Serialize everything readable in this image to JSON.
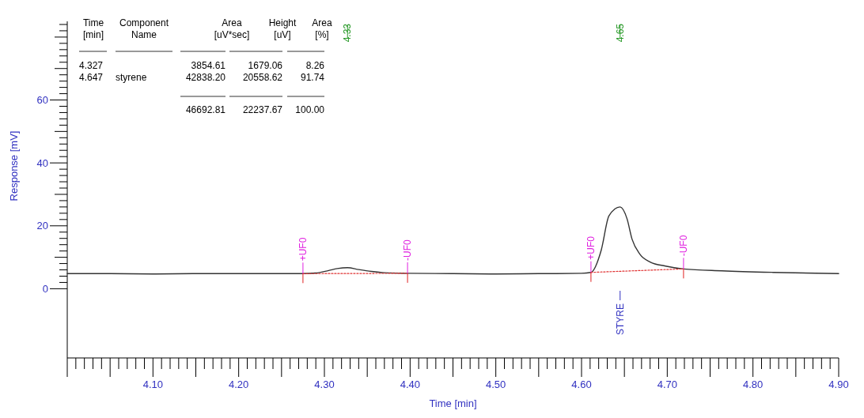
{
  "chart_data": {
    "type": "line",
    "xlabel": "Time [min]",
    "ylabel": "Response [mV]",
    "xlim": [
      4.0,
      4.9
    ],
    "ylim": [
      -22,
      85
    ],
    "xticks": [
      {
        "value": 4.0,
        "label": null
      },
      {
        "value": 4.01,
        "label": null
      },
      {
        "value": 4.02,
        "label": null
      },
      {
        "value": 4.03,
        "label": null
      },
      {
        "value": 4.04,
        "label": null
      },
      {
        "value": 4.05,
        "label": null
      },
      {
        "value": 4.06,
        "label": null
      },
      {
        "value": 4.07,
        "label": null
      },
      {
        "value": 4.08,
        "label": null
      },
      {
        "value": 4.09,
        "label": null
      },
      {
        "value": 4.1,
        "label": "4.10"
      },
      {
        "value": 4.11,
        "label": null
      },
      {
        "value": 4.12,
        "label": null
      },
      {
        "value": 4.13,
        "label": null
      },
      {
        "value": 4.14,
        "label": null
      },
      {
        "value": 4.15,
        "label": null
      },
      {
        "value": 4.16,
        "label": null
      },
      {
        "value": 4.17,
        "label": null
      },
      {
        "value": 4.18,
        "label": null
      },
      {
        "value": 4.19,
        "label": null
      },
      {
        "value": 4.2,
        "label": "4.20"
      },
      {
        "value": 4.21,
        "label": null
      },
      {
        "value": 4.22,
        "label": null
      },
      {
        "value": 4.23,
        "label": null
      },
      {
        "value": 4.24,
        "label": null
      },
      {
        "value": 4.25,
        "label": null
      },
      {
        "value": 4.26,
        "label": null
      },
      {
        "value": 4.27,
        "label": null
      },
      {
        "value": 4.28,
        "label": null
      },
      {
        "value": 4.29,
        "label": null
      },
      {
        "value": 4.3,
        "label": "4.30"
      },
      {
        "value": 4.31,
        "label": null
      },
      {
        "value": 4.32,
        "label": null
      },
      {
        "value": 4.33,
        "label": null
      },
      {
        "value": 4.34,
        "label": null
      },
      {
        "value": 4.35,
        "label": null
      },
      {
        "value": 4.36,
        "label": null
      },
      {
        "value": 4.37,
        "label": null
      },
      {
        "value": 4.38,
        "label": null
      },
      {
        "value": 4.39,
        "label": null
      },
      {
        "value": 4.4,
        "label": "4.40"
      },
      {
        "value": 4.41,
        "label": null
      },
      {
        "value": 4.42,
        "label": null
      },
      {
        "value": 4.43,
        "label": null
      },
      {
        "value": 4.44,
        "label": null
      },
      {
        "value": 4.45,
        "label": null
      },
      {
        "value": 4.46,
        "label": null
      },
      {
        "value": 4.47,
        "label": null
      },
      {
        "value": 4.48,
        "label": null
      },
      {
        "value": 4.49,
        "label": null
      },
      {
        "value": 4.5,
        "label": "4.50"
      },
      {
        "value": 4.51,
        "label": null
      },
      {
        "value": 4.52,
        "label": null
      },
      {
        "value": 4.53,
        "label": null
      },
      {
        "value": 4.54,
        "label": null
      },
      {
        "value": 4.55,
        "label": null
      },
      {
        "value": 4.56,
        "label": null
      },
      {
        "value": 4.57,
        "label": null
      },
      {
        "value": 4.58,
        "label": null
      },
      {
        "value": 4.59,
        "label": null
      },
      {
        "value": 4.6,
        "label": "4.60"
      },
      {
        "value": 4.61,
        "label": null
      },
      {
        "value": 4.62,
        "label": null
      },
      {
        "value": 4.63,
        "label": null
      },
      {
        "value": 4.64,
        "label": null
      },
      {
        "value": 4.65,
        "label": null
      },
      {
        "value": 4.66,
        "label": null
      },
      {
        "value": 4.67,
        "label": null
      },
      {
        "value": 4.68,
        "label": null
      },
      {
        "value": 4.69,
        "label": null
      },
      {
        "value": 4.7,
        "label": "4.70"
      },
      {
        "value": 4.71,
        "label": null
      },
      {
        "value": 4.72,
        "label": null
      },
      {
        "value": 4.73,
        "label": null
      },
      {
        "value": 4.74,
        "label": null
      },
      {
        "value": 4.75,
        "label": null
      },
      {
        "value": 4.76,
        "label": null
      },
      {
        "value": 4.77,
        "label": null
      },
      {
        "value": 4.78,
        "label": null
      },
      {
        "value": 4.79,
        "label": null
      },
      {
        "value": 4.8,
        "label": "4.80"
      },
      {
        "value": 4.81,
        "label": null
      },
      {
        "value": 4.82,
        "label": null
      },
      {
        "value": 4.83,
        "label": null
      },
      {
        "value": 4.84,
        "label": null
      },
      {
        "value": 4.85,
        "label": null
      },
      {
        "value": 4.86,
        "label": null
      },
      {
        "value": 4.87,
        "label": null
      },
      {
        "value": 4.88,
        "label": null
      },
      {
        "value": 4.89,
        "label": null
      },
      {
        "value": 4.9,
        "label": "4.90"
      }
    ],
    "yticks": [
      0,
      {
        "value": 2,
        "label": null
      },
      {
        "value": 4,
        "label": null
      },
      {
        "value": 6,
        "label": null
      },
      {
        "value": 8,
        "label": null
      },
      {
        "value": 10,
        "label": null
      },
      {
        "value": 12,
        "label": null
      },
      {
        "value": 14,
        "label": null
      },
      {
        "value": 16,
        "label": null
      },
      {
        "value": 18,
        "label": null
      },
      20,
      {
        "value": 22,
        "label": null
      },
      {
        "value": 24,
        "label": null
      },
      {
        "value": 26,
        "label": null
      },
      {
        "value": 28,
        "label": null
      },
      {
        "value": 30,
        "label": null
      },
      {
        "value": 32,
        "label": null
      },
      {
        "value": 34,
        "label": null
      },
      {
        "value": 36,
        "label": null
      },
      {
        "value": 38,
        "label": null
      },
      40,
      {
        "value": 42,
        "label": null
      },
      {
        "value": 44,
        "label": null
      },
      {
        "value": 46,
        "label": null
      },
      {
        "value": 48,
        "label": null
      },
      {
        "value": 50,
        "label": null
      },
      {
        "value": 52,
        "label": null
      },
      {
        "value": 54,
        "label": null
      },
      {
        "value": 56,
        "label": null
      },
      {
        "value": 58,
        "label": null
      },
      60,
      {
        "value": 62,
        "label": null
      },
      {
        "value": 64,
        "label": null
      },
      {
        "value": 66,
        "label": null
      },
      {
        "value": 68,
        "label": null
      },
      {
        "value": 70,
        "label": null
      },
      {
        "value": 72,
        "label": null
      },
      {
        "value": 74,
        "label": null
      },
      {
        "value": 76,
        "label": null
      },
      {
        "value": 78,
        "label": null
      },
      {
        "value": 80,
        "label": null
      },
      {
        "value": 82,
        "label": null
      },
      {
        "value": 84,
        "label": null
      }
    ],
    "series": [
      {
        "color": "#333333",
        "line_style": "solid",
        "x": [
          4.0,
          4.05,
          4.1,
          4.15,
          4.2,
          4.25,
          4.275,
          4.29,
          4.305,
          4.315,
          4.327,
          4.34,
          4.355,
          4.37,
          4.4,
          4.45,
          4.5,
          4.55,
          4.6,
          4.611,
          4.623,
          4.632,
          4.645,
          4.653,
          4.659,
          4.668,
          4.68,
          4.698,
          4.719,
          4.764,
          4.824,
          4.9
        ],
        "values": [
          4.8,
          4.8,
          4.7,
          4.8,
          4.8,
          4.8,
          4.8,
          5.0,
          5.8,
          6.4,
          6.7,
          6.1,
          5.5,
          5.1,
          4.9,
          4.8,
          4.7,
          4.8,
          4.9,
          5.2,
          12.3,
          23.2,
          26,
          22.3,
          15.7,
          11,
          8.5,
          7.2,
          6.3,
          5.7,
          5.2,
          4.8
        ]
      },
      {
        "color": "#e03030",
        "line_style": "dotted",
        "x": [
          4.275,
          4.397
        ],
        "values": [
          4.8,
          4.9
        ]
      },
      {
        "color": "#e03030",
        "line_style": "dotted",
        "x": [
          4.611,
          4.719
        ],
        "values": [
          5.2,
          6.3
        ]
      }
    ],
    "annotations": [
      "Time\n[min]",
      "Component\nName",
      "Area\n[uV*sec]",
      "Height\n[uV]",
      "Area\n[%]",
      "4.327",
      "3854.61",
      "1679.06",
      "8.26",
      "4.647",
      "styrene",
      "42838.20",
      "20558.62",
      "91.74",
      "46692.81",
      "22237.67",
      "100.00",
      "STYRE",
      "4.33",
      "4.65",
      {
        "text": "+UF0",
        "x": 4.275,
        "y": 4.8
      },
      {
        "text": "-UF0",
        "x": 4.397,
        "y": 4.9
      },
      {
        "text": "+UF0",
        "x": 4.611,
        "y": 5.2
      },
      {
        "text": "-UF0",
        "x": 4.719,
        "y": 6.3
      }
    ]
  }
}
